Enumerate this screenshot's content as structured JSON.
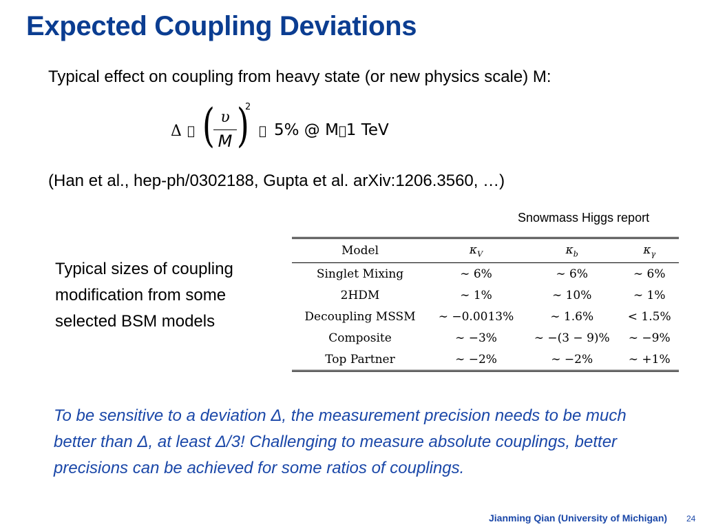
{
  "slide": {
    "title": "Expected Coupling Deviations",
    "intro": "Typical effect on coupling from heavy state (or new physics scale) M:",
    "formula": {
      "delta": "Δ",
      "glyph_a": "",
      "numerator": "υ",
      "denominator": "M",
      "exponent": "2",
      "glyph_b": "",
      "rhs_pre": "5% @ M",
      "glyph_c": "",
      "rhs_post": "1 TeV"
    },
    "references": "(Han et al., hep-ph/0302188, Gupta et al. arXiv:1206.3560, …)",
    "table_caption": "Snowmass Higgs report",
    "side_text": "Typical sizes of coupling modification from some selected BSM models",
    "table": {
      "headers": [
        "Model",
        "κV",
        "κb",
        "κγ"
      ],
      "rows": [
        [
          "Singlet Mixing",
          "∼ 6%",
          "∼ 6%",
          "∼ 6%"
        ],
        [
          "2HDM",
          "∼ 1%",
          "∼ 10%",
          "∼ 1%"
        ],
        [
          "Decoupling MSSM",
          "∼ −0.0013%",
          "∼ 1.6%",
          "< 1.5%"
        ],
        [
          "Composite",
          "∼ −3%",
          "∼ −(3 − 9)%",
          "∼ −9%"
        ],
        [
          "Top Partner",
          "∼ −2%",
          "∼ −2%",
          "∼ +1%"
        ]
      ]
    },
    "conclusion": "To be sensitive to a deviation Δ, the measurement precision needs to be much better than Δ, at least Δ/3!  Challenging to measure absolute couplings, better precisions can be achieved for some ratios of couplings.",
    "footer": "Jianming Qian (University of Michigan)",
    "page_number": "24"
  }
}
